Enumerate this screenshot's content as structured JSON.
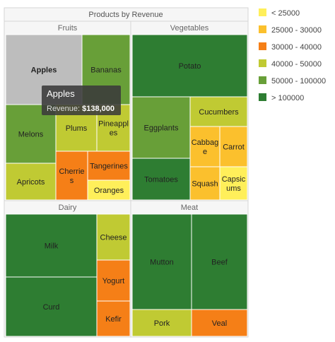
{
  "chart_data": {
    "type": "treemap",
    "title": "Products by Revenue",
    "groups": [
      {
        "name": "Fruits",
        "items": [
          {
            "name": "Apples",
            "value": 138000
          },
          {
            "name": "Bananas",
            "value": 64000
          },
          {
            "name": "Melons",
            "value": 56000
          },
          {
            "name": "Plums",
            "value": 44000
          },
          {
            "name": "Pineapples",
            "value": 44000
          },
          {
            "name": "Apricots",
            "value": 45000
          },
          {
            "name": "Cherries",
            "value": 35000
          },
          {
            "name": "Tangerines",
            "value": 34000
          },
          {
            "name": "Oranges",
            "value": 20000
          }
        ]
      },
      {
        "name": "Vegetables",
        "items": [
          {
            "name": "Potato",
            "value": 190000
          },
          {
            "name": "Eggplants",
            "value": 63000
          },
          {
            "name": "Cucumbers",
            "value": 47000
          },
          {
            "name": "Cabbage",
            "value": 26000
          },
          {
            "name": "Carrot",
            "value": 28000
          },
          {
            "name": "Tomatoes",
            "value": 105000
          },
          {
            "name": "Squash",
            "value": 25000
          },
          {
            "name": "Capsicums",
            "value": 24000
          }
        ]
      },
      {
        "name": "Dairy",
        "items": [
          {
            "name": "Milk",
            "value": 220000
          },
          {
            "name": "Curd",
            "value": 210000
          },
          {
            "name": "Cheese",
            "value": 43000
          },
          {
            "name": "Yogurt",
            "value": 38000
          },
          {
            "name": "Kefir",
            "value": 31000
          }
        ]
      },
      {
        "name": "Meat",
        "items": [
          {
            "name": "Mutton",
            "value": 230000
          },
          {
            "name": "Beef",
            "value": 200000
          },
          {
            "name": "Pork",
            "value": 45000
          },
          {
            "name": "Veal",
            "value": 38000
          }
        ]
      }
    ],
    "legend": [
      {
        "label": "< 25000",
        "color": "#ffef5a"
      },
      {
        "label": "25000 - 30000",
        "color": "#fbc02d"
      },
      {
        "label": "30000 - 40000",
        "color": "#f57f17"
      },
      {
        "label": "40000 - 50000",
        "color": "#c0ca33"
      },
      {
        "label": "50000 - 100000",
        "color": "#689f38"
      },
      {
        "label": "> 100000",
        "color": "#2e7d32"
      }
    ],
    "legend_position": "right",
    "highlighted": "Apples",
    "highlight_color": "#bdbdbd",
    "tooltip": {
      "title": "Apples",
      "label": "Revenue:",
      "value": "$138,000"
    }
  }
}
